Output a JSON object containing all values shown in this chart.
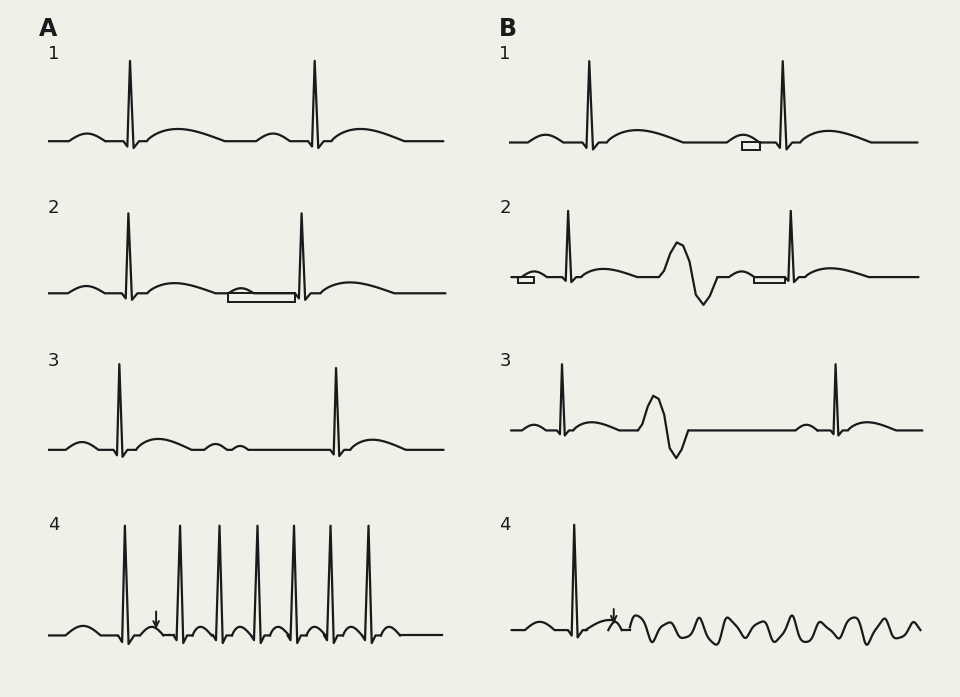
{
  "bg_color": "#f0efe8",
  "line_color": "#1a1a1a",
  "line_width": 1.6,
  "fig_width": 9.6,
  "fig_height": 6.97
}
